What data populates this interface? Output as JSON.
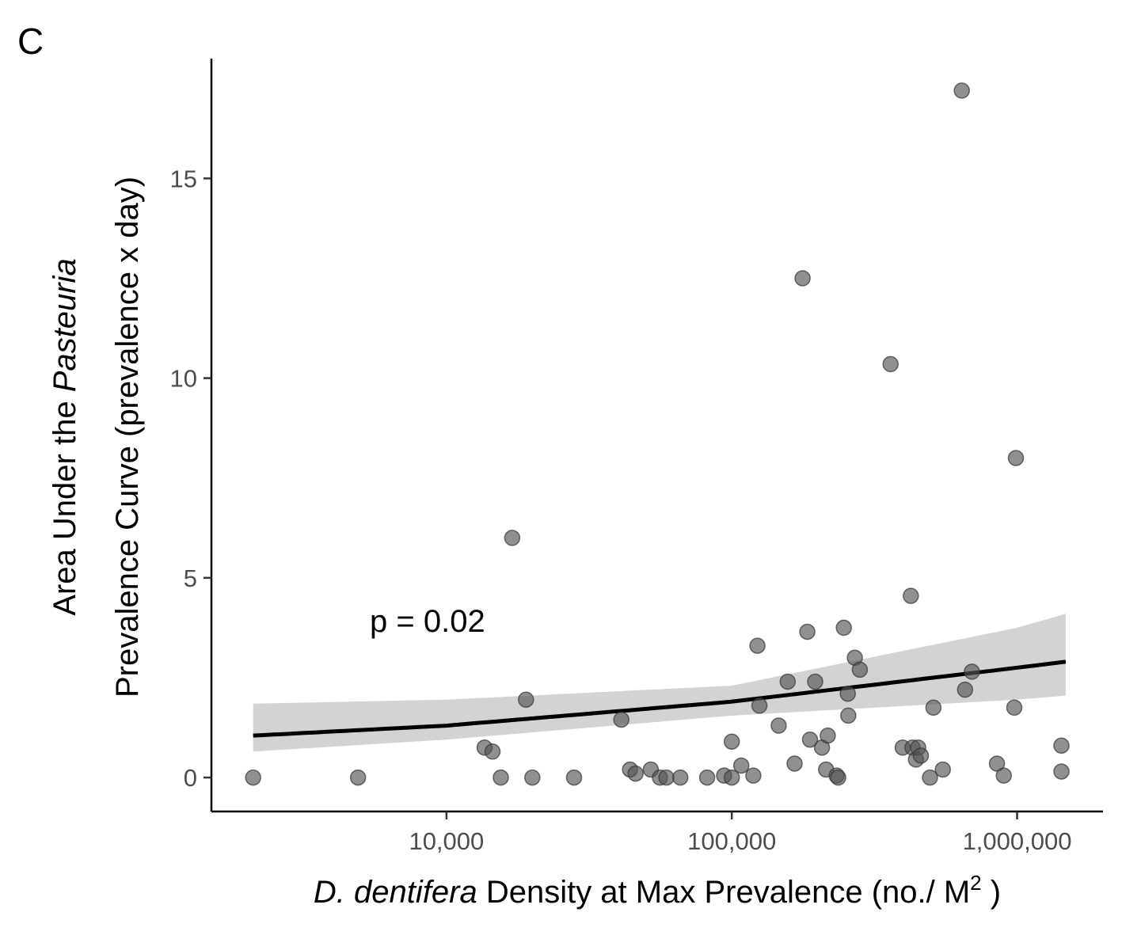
{
  "panel_label": "C",
  "chart_data": {
    "type": "scatter",
    "x_scale": "log10",
    "xlim": [
      1500,
      2000000
    ],
    "ylim": [
      -0.85,
      18
    ],
    "x_ticks": [
      10000,
      100000,
      1000000
    ],
    "x_tick_labels": [
      "10,000",
      "100,000",
      "1,000,000"
    ],
    "y_ticks": [
      0,
      5,
      10,
      15
    ],
    "y_tick_labels": [
      "0",
      "5",
      "10",
      "15"
    ],
    "xlabel": {
      "italic": "D. dentifera",
      "rest": " Density at Max Prevalence (no./ M",
      "superscript": "2",
      "close": " )"
    },
    "ylabel": {
      "line1_pre": "Area Under the ",
      "line1_italic": "Pasteuria",
      "line2": "Prevalence Curve (prevalence x day)"
    },
    "annotation": "p = 0.02",
    "grid": false,
    "legend": "none",
    "colors": {
      "point": "#555555",
      "line": "#000000",
      "ribbon": "#d3d3d3"
    },
    "points": [
      [
        2100,
        0
      ],
      [
        4900,
        0
      ],
      [
        13600,
        0.75
      ],
      [
        14500,
        0.65
      ],
      [
        15500,
        0
      ],
      [
        17000,
        6.0
      ],
      [
        19000,
        1.95
      ],
      [
        20000,
        0
      ],
      [
        28000,
        0
      ],
      [
        41000,
        1.45
      ],
      [
        44000,
        0.2
      ],
      [
        46000,
        0.1
      ],
      [
        52000,
        0.2
      ],
      [
        56000,
        0
      ],
      [
        59000,
        0
      ],
      [
        66000,
        0
      ],
      [
        82000,
        0
      ],
      [
        94000,
        0.05
      ],
      [
        100000,
        0
      ],
      [
        100000,
        0.9
      ],
      [
        108000,
        0.3
      ],
      [
        119000,
        0.05
      ],
      [
        123000,
        3.3
      ],
      [
        125000,
        1.8
      ],
      [
        146000,
        1.3
      ],
      [
        157000,
        2.4
      ],
      [
        166000,
        0.35
      ],
      [
        177000,
        12.5
      ],
      [
        184000,
        3.65
      ],
      [
        188000,
        0.95
      ],
      [
        196000,
        2.4
      ],
      [
        207000,
        0.75
      ],
      [
        214000,
        0.2
      ],
      [
        217000,
        1.05
      ],
      [
        233000,
        0.05
      ],
      [
        236000,
        0
      ],
      [
        247000,
        3.75
      ],
      [
        255000,
        2.1
      ],
      [
        256000,
        1.55
      ],
      [
        270000,
        3.0
      ],
      [
        281000,
        2.7
      ],
      [
        360000,
        10.35
      ],
      [
        397000,
        0.75
      ],
      [
        424000,
        4.55
      ],
      [
        430000,
        0.75
      ],
      [
        442000,
        0.45
      ],
      [
        450000,
        0.75
      ],
      [
        460000,
        0.55
      ],
      [
        495000,
        0
      ],
      [
        509000,
        1.75
      ],
      [
        549000,
        0.2
      ],
      [
        640000,
        17.2
      ],
      [
        657000,
        2.2
      ],
      [
        694000,
        2.65
      ],
      [
        850000,
        0.35
      ],
      [
        898000,
        0.05
      ],
      [
        978000,
        1.75
      ],
      [
        990000,
        8.0
      ],
      [
        1430000,
        0.8
      ],
      [
        1430000,
        0.15
      ]
    ],
    "fit_line": [
      [
        2100,
        1.05
      ],
      [
        10000,
        1.3
      ],
      [
        100000,
        1.9
      ],
      [
        1000000,
        2.75
      ],
      [
        1480000,
        2.9
      ]
    ],
    "ribbon_upper": [
      [
        2100,
        1.85
      ],
      [
        10000,
        1.95
      ],
      [
        100000,
        2.3
      ],
      [
        1000000,
        3.75
      ],
      [
        1480000,
        4.1
      ]
    ],
    "ribbon_lower": [
      [
        2100,
        0.65
      ],
      [
        10000,
        0.95
      ],
      [
        100000,
        1.55
      ],
      [
        1000000,
        1.95
      ],
      [
        1480000,
        2.05
      ]
    ]
  }
}
